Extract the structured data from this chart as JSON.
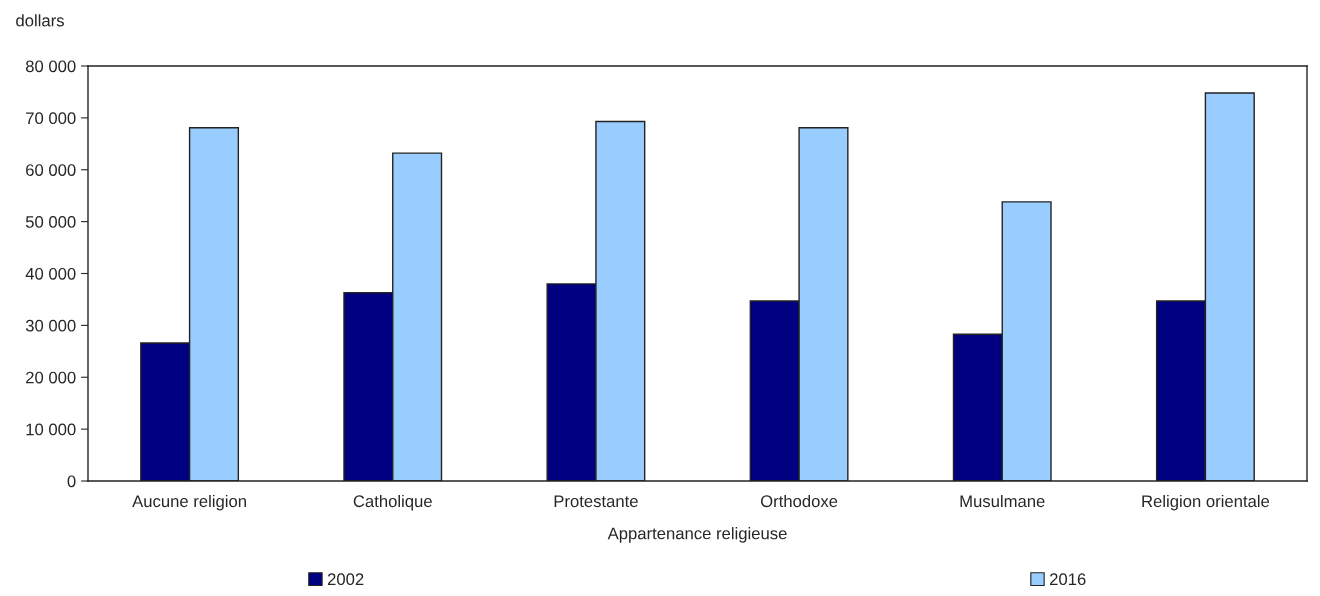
{
  "chart_data": {
    "type": "bar",
    "ylabel": "dollars",
    "xlabel": "Appartenance religieuse",
    "categories": [
      "Aucune religion",
      "Catholique",
      "Protestante",
      "Orthodoxe",
      "Musulmane",
      "Religion orientale"
    ],
    "series": [
      {
        "name": "2002",
        "color": "#000080",
        "values": [
          26600,
          36300,
          38000,
          34700,
          28300,
          34700
        ]
      },
      {
        "name": "2016",
        "color": "#99ccff",
        "values": [
          68100,
          63200,
          69300,
          68100,
          53800,
          74800
        ]
      }
    ],
    "ylim": [
      0,
      80000
    ],
    "yticks": [
      {
        "value": 0,
        "label": "0"
      },
      {
        "value": 10000,
        "label": "10 000"
      },
      {
        "value": 20000,
        "label": "20 000"
      },
      {
        "value": 30000,
        "label": "30 000"
      },
      {
        "value": 40000,
        "label": "40 000"
      },
      {
        "value": 50000,
        "label": "50 000"
      },
      {
        "value": 60000,
        "label": "60 000"
      },
      {
        "value": 70000,
        "label": "70 000"
      },
      {
        "value": 80000,
        "label": "80 000"
      }
    ],
    "grid": false,
    "legend": "bottom"
  }
}
